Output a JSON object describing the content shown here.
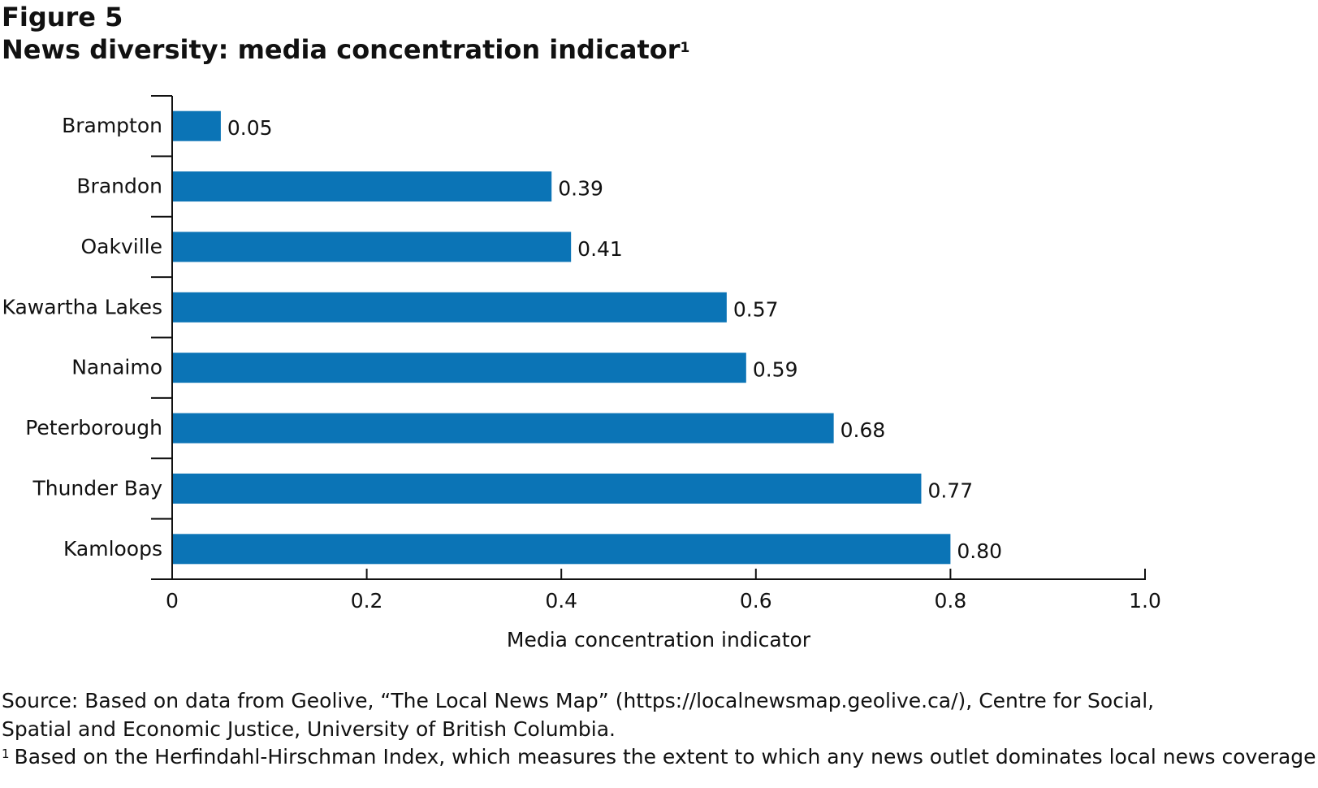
{
  "figure": {
    "label": "Figure 5",
    "title": "News diversity: media concentration indicator",
    "title_footnote_marker": "1"
  },
  "chart_data": {
    "type": "bar",
    "orientation": "horizontal",
    "categories": [
      "Brampton",
      "Brandon",
      "Oakville",
      "Kawartha Lakes",
      "Nanaimo",
      "Peterborough",
      "Thunder Bay",
      "Kamloops"
    ],
    "values": [
      0.05,
      0.39,
      0.41,
      0.57,
      0.59,
      0.68,
      0.77,
      0.8
    ],
    "value_labels": [
      "0.05",
      "0.39",
      "0.41",
      "0.57",
      "0.59",
      "0.68",
      "0.77",
      "0.80"
    ],
    "xlabel": "Media concentration indicator",
    "ylabel": "",
    "xlim": [
      0,
      1.0
    ],
    "xticks": [
      0,
      0.2,
      0.4,
      0.6,
      0.8,
      1.0
    ],
    "xtick_labels": [
      "0",
      "0.2",
      "0.4",
      "0.6",
      "0.8",
      "1.0"
    ],
    "grid": false,
    "bar_color": "#0b74b6"
  },
  "source": {
    "text": "Source: Based on data from Geolive, “The Local News Map” (https://localnewsmap.geolive.ca/), Centre for Social, Spatial and Economic Justice, University of British Columbia."
  },
  "footnote": {
    "marker": "1",
    "text": "Based on the Herfindahl-Hirschman Index, which measures the extent to which any news outlet dominates local news coverage."
  }
}
